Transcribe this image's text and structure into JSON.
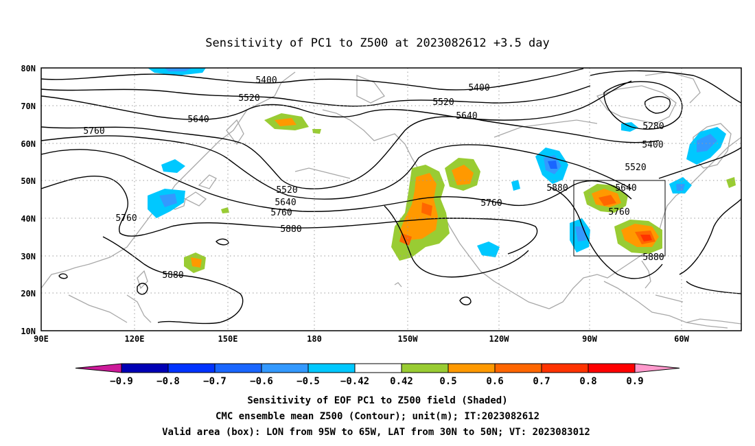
{
  "title": "Sensitivity of PC1 to Z500 at 2023082612 +3.5 day",
  "map": {
    "lon_labels": [
      "90E",
      "120E",
      "150E",
      "180",
      "150W",
      "120W",
      "90W",
      "60W"
    ],
    "lat_labels": [
      "80N",
      "70N",
      "60N",
      "50N",
      "40N",
      "30N",
      "20N",
      "10N"
    ],
    "contour_labels": [
      "5400",
      "5400",
      "5520",
      "5520",
      "5520",
      "5640",
      "5640",
      "5640",
      "5640",
      "5760",
      "5760",
      "5760",
      "5760",
      "5880",
      "5880",
      "5880",
      "5880",
      "5400",
      "5280"
    ],
    "valid_box": {
      "lon_west": "95W",
      "lon_east": "65W",
      "lat_south": "30N",
      "lat_north": "50N"
    }
  },
  "colorbar": {
    "labels": [
      "-0.9",
      "-0.8",
      "-0.7",
      "-0.6",
      "-0.5",
      "-0.42",
      "0.42",
      "0.5",
      "0.6",
      "0.7",
      "0.8",
      "0.9"
    ],
    "colors": [
      "#0000b4",
      "#0033ff",
      "#1966ff",
      "#3399ff",
      "#00c8ff",
      "#ffffff",
      "#99cc33",
      "#ff9900",
      "#ff6600",
      "#ff3300",
      "#ff0000"
    ],
    "low_extend_color": "#cc1a99",
    "high_extend_color": "#ff99cc"
  },
  "captions": {
    "line1": "Sensitivity of EOF PC1 to Z500 field (Shaded)",
    "line2": "CMC ensemble mean Z500 (Contour); unit(m); IT:2023082612",
    "line3": "Valid area (box): LON from 95W to 65W, LAT from 30N to 50N; VT: 2023083012"
  }
}
